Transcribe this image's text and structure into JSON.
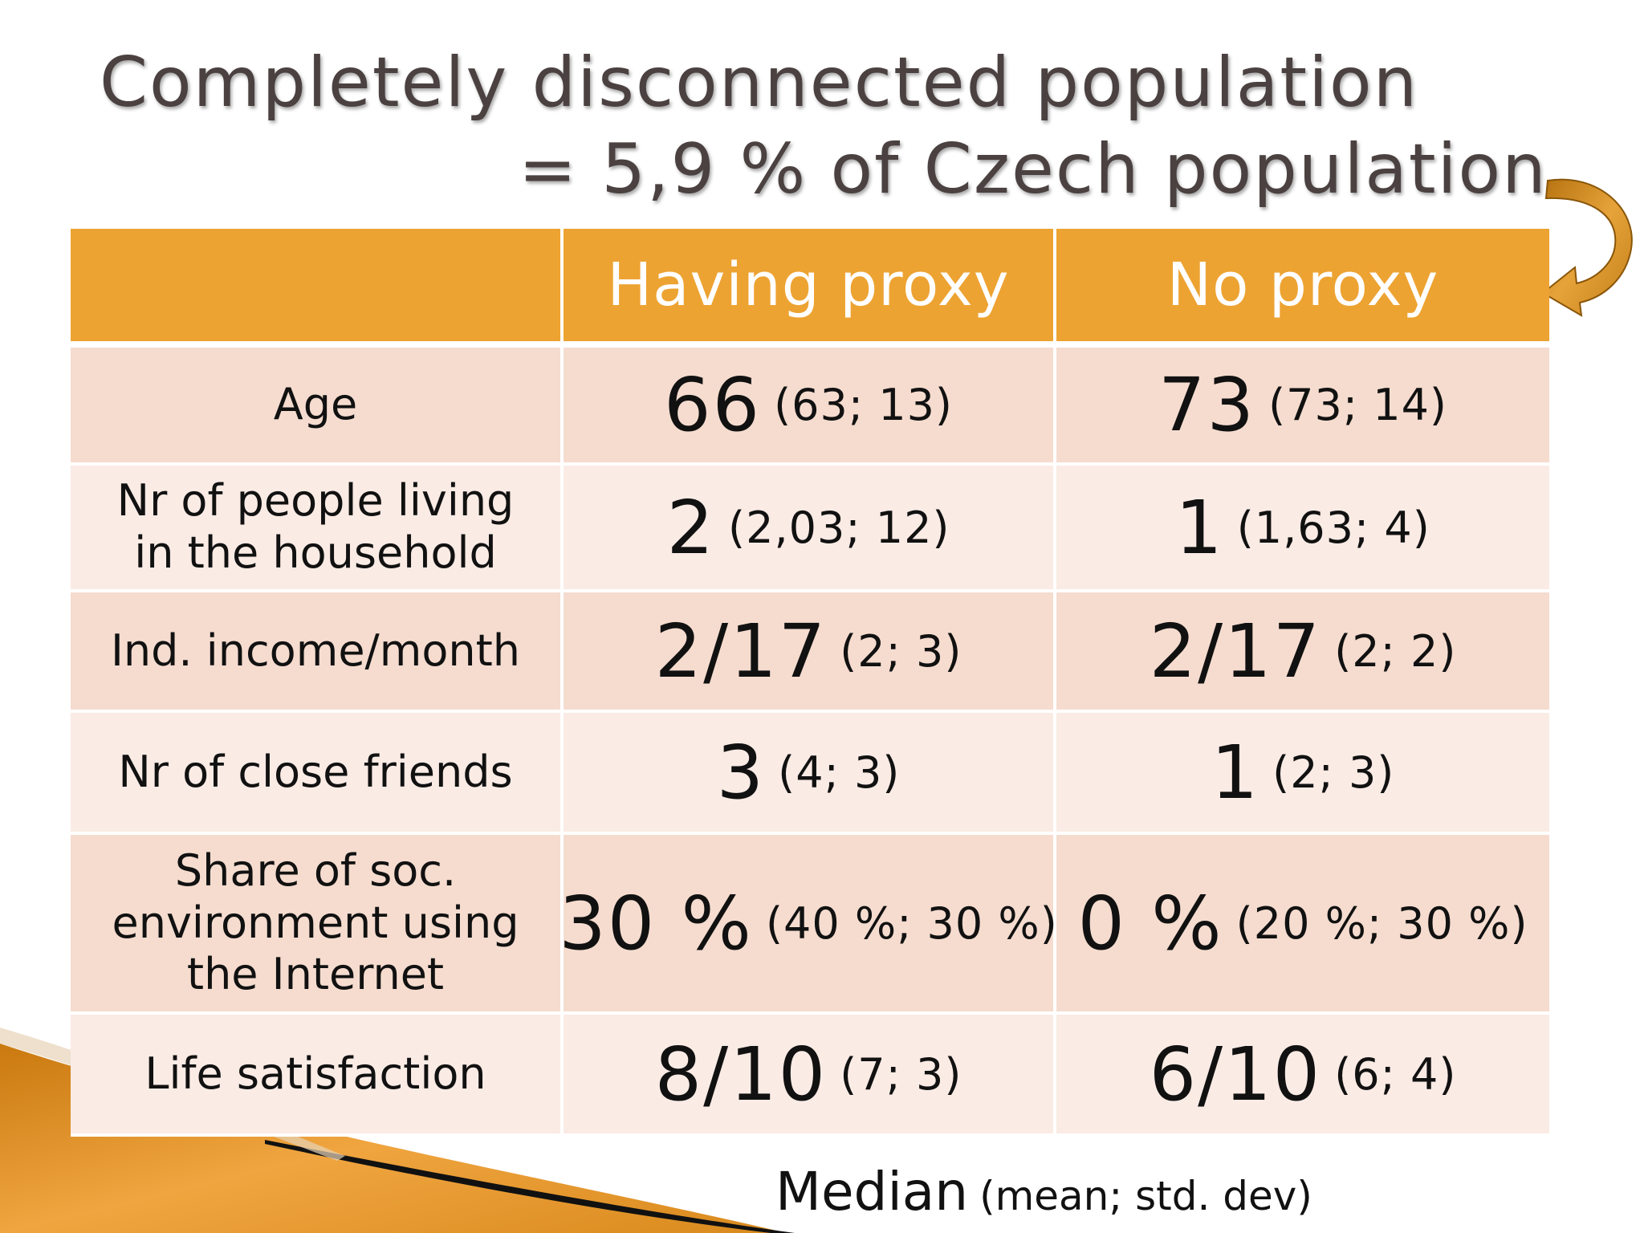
{
  "title": {
    "line1": "Completely disconnected population",
    "line2": "= 5,9 % of Czech population"
  },
  "colors": {
    "header": "#eda332",
    "row_dark": "#f5dccf",
    "row_light": "#faebe5",
    "title": "#4a4140",
    "arrow": "#d08a1c"
  },
  "icons": {
    "arrow": "curved-arrow-icon"
  },
  "table": {
    "columns": [
      "",
      "Having proxy",
      "No proxy"
    ],
    "rows": [
      {
        "label": [
          "Age"
        ],
        "having_proxy": {
          "median": "66",
          "stats": "(63; 13)"
        },
        "no_proxy": {
          "median": "73",
          "stats": "(73; 14)"
        }
      },
      {
        "label": [
          "Nr of people living",
          "in the household"
        ],
        "having_proxy": {
          "median": "2",
          "stats": "(2,03; 12)"
        },
        "no_proxy": {
          "median": "1",
          "stats": "(1,63; 4)"
        }
      },
      {
        "label": [
          "Ind. income/month"
        ],
        "having_proxy": {
          "median": "2/17",
          "stats": "(2; 3)"
        },
        "no_proxy": {
          "median": "2/17",
          "stats": "(2; 2)"
        }
      },
      {
        "label": [
          "Nr of close friends"
        ],
        "having_proxy": {
          "median": "3",
          "stats": "(4; 3)"
        },
        "no_proxy": {
          "median": "1",
          "stats": "(2; 3)"
        }
      },
      {
        "label": [
          "Share of soc.",
          "environment using",
          "the Internet"
        ],
        "having_proxy": {
          "median": "30 %",
          "stats": "(40 %; 30 %)"
        },
        "no_proxy": {
          "median": "0 %",
          "stats": "(20 %; 30 %)"
        }
      },
      {
        "label": [
          "Life satisfaction"
        ],
        "having_proxy": {
          "median": "8/10",
          "stats": "(7; 3)"
        },
        "no_proxy": {
          "median": "6/10",
          "stats": "(6; 4)"
        }
      }
    ]
  },
  "legend": {
    "median": "Median",
    "rest": "(mean; std. dev)"
  }
}
